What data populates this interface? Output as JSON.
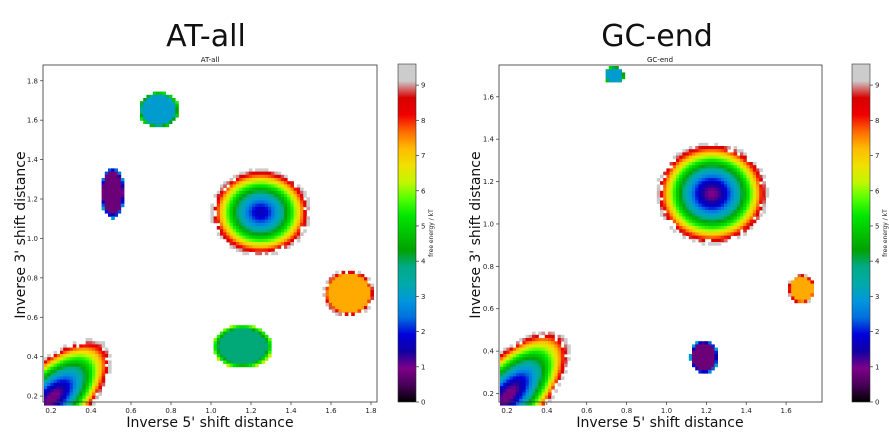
{
  "chart_data": [
    {
      "type": "heatmap",
      "suptitle": "AT-all",
      "title": "AT-all",
      "xlabel": "Inverse 5' shift distance",
      "ylabel": "Inverse 3' shift distance",
      "xlim": [
        0.16,
        1.83
      ],
      "ylim": [
        0.17,
        1.88
      ],
      "xticks": [
        0.2,
        0.4,
        0.6,
        0.8,
        1.0,
        1.2,
        1.4,
        1.6,
        1.8
      ],
      "xtick_labels": [
        "0.2",
        "0.4",
        "0.6",
        "0.8",
        "1.0",
        "1.2",
        "1.4",
        "1.6",
        "1.8"
      ],
      "yticks": [
        0.2,
        0.4,
        0.6,
        0.8,
        1.0,
        1.2,
        1.4,
        1.6,
        1.8
      ],
      "ytick_labels": [
        "0.2",
        "0.4",
        "0.6",
        "0.8",
        "1.0",
        "1.2",
        "1.4",
        "1.6",
        "1.8"
      ],
      "colorbar": {
        "label": "free energy / kT",
        "range": [
          0,
          9.6
        ],
        "ticks": [
          0,
          1,
          2,
          3,
          4,
          5,
          6,
          7,
          8,
          9
        ],
        "tick_labels": [
          "0",
          "1",
          "2",
          "3",
          "4",
          "5",
          "6",
          "7",
          "8",
          "9"
        ]
      },
      "basins": [
        {
          "x": 1.24,
          "y": 1.14,
          "sx": 0.25,
          "sy": 0.22,
          "min_energy": 1.6,
          "shape": "ellipse"
        },
        {
          "x": 0.2,
          "y": 0.2,
          "sx": 0.42,
          "sy": 0.46,
          "min_energy": 0.8,
          "shape": "wedge"
        },
        {
          "x": 0.73,
          "y": 1.66,
          "sx": 0.1,
          "sy": 0.09,
          "min_energy": 3.0,
          "shape": "flat"
        },
        {
          "x": 1.15,
          "y": 0.46,
          "sx": 0.15,
          "sy": 0.11,
          "min_energy": 3.9,
          "shape": "flat"
        },
        {
          "x": 1.68,
          "y": 0.73,
          "sx": 0.13,
          "sy": 0.12,
          "min_energy": 7.3,
          "shape": "flat"
        },
        {
          "x": 0.5,
          "y": 1.24,
          "sx": 0.06,
          "sy": 0.13,
          "min_energy": 0.8,
          "shape": "flat"
        }
      ]
    },
    {
      "type": "heatmap",
      "suptitle": "GC-end",
      "title": "GC-end",
      "xlabel": "Inverse 5' shift distance",
      "ylabel": "Inverse 3' shift distance",
      "xlim": [
        0.16,
        1.78
      ],
      "ylim": [
        0.16,
        1.75
      ],
      "xticks": [
        0.2,
        0.4,
        0.6,
        0.8,
        1.0,
        1.2,
        1.4,
        1.6
      ],
      "xtick_labels": [
        "0.2",
        "0.4",
        "0.6",
        "0.8",
        "1.0",
        "1.2",
        "1.4",
        "1.6"
      ],
      "yticks": [
        0.2,
        0.4,
        0.6,
        0.8,
        1.0,
        1.2,
        1.4,
        1.6
      ],
      "ytick_labels": [
        "0.2",
        "0.4",
        "0.6",
        "0.8",
        "1.0",
        "1.2",
        "1.4",
        "1.6"
      ],
      "colorbar": {
        "label": "free energy / kT",
        "range": [
          0,
          9.6
        ],
        "ticks": [
          0,
          1,
          2,
          3,
          4,
          5,
          6,
          7,
          8,
          9
        ],
        "tick_labels": [
          "0",
          "1",
          "2",
          "3",
          "4",
          "5",
          "6",
          "7",
          "8",
          "9"
        ]
      },
      "basins": [
        {
          "x": 1.22,
          "y": 1.15,
          "sx": 0.28,
          "sy": 0.24,
          "min_energy": 0.9,
          "shape": "ellipse"
        },
        {
          "x": 0.2,
          "y": 0.2,
          "sx": 0.44,
          "sy": 0.46,
          "min_energy": 0.8,
          "shape": "wedge"
        },
        {
          "x": 1.67,
          "y": 0.7,
          "sx": 0.07,
          "sy": 0.07,
          "min_energy": 7.3,
          "shape": "flat"
        },
        {
          "x": 0.73,
          "y": 1.71,
          "sx": 0.05,
          "sy": 0.04,
          "min_energy": 3.0,
          "shape": "flat"
        },
        {
          "x": 1.18,
          "y": 0.38,
          "sx": 0.07,
          "sy": 0.08,
          "min_energy": 0.8,
          "shape": "flat"
        }
      ]
    }
  ]
}
